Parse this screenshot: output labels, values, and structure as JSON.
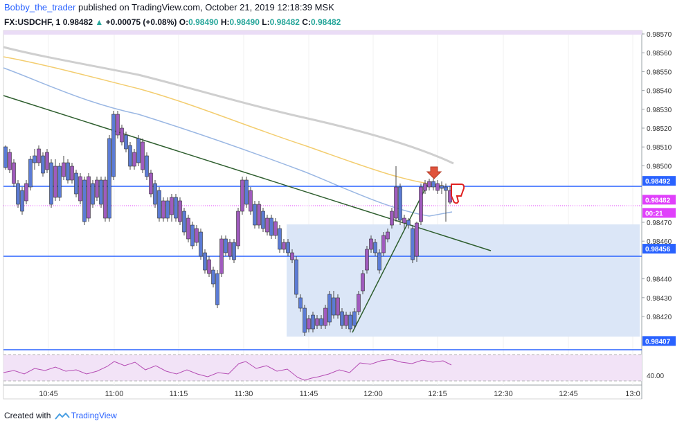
{
  "header": {
    "author": "Bobby_the_trader",
    "published": "published on TradingView.com, October 21, 2019 12:18:39 MSK",
    "symbol": "FX:USDCHF, 1",
    "last": "0.98482",
    "change_arrow": "▲",
    "change": "+0.00075 (+0.08%)",
    "o_label": "O:",
    "o_val": "0.98490",
    "h_label": "H:",
    "h_val": "0.98490",
    "l_label": "L:",
    "l_val": "0.98482",
    "c_label": "C:",
    "c_val": "0.98482"
  },
  "price_axis": {
    "ticks": [
      "0.98570",
      "0.98560",
      "0.98550",
      "0.98540",
      "0.98530",
      "0.98520",
      "0.98510",
      "0.98500",
      "0.98470",
      "0.98460",
      "0.98440",
      "0.98430",
      "0.98420"
    ],
    "tags": [
      {
        "label": "0.98492",
        "value": 0.98492,
        "color": "#2962ff"
      },
      {
        "label": "0.98482",
        "value": 0.98482,
        "color": "#e040fb"
      },
      {
        "label": "00:21",
        "value": 0.98475,
        "color": "#e040fb"
      },
      {
        "label": "0.98456",
        "value": 0.98456,
        "color": "#2962ff"
      },
      {
        "label": "0.98407",
        "value": 0.98407,
        "color": "#2962ff"
      }
    ],
    "ylim": [
      0.98402,
      0.98574
    ]
  },
  "time_axis": {
    "labels": [
      "10:45",
      "11:00",
      "11:15",
      "11:30",
      "11:45",
      "12:00",
      "12:15",
      "12:30",
      "12:45",
      "13:0"
    ]
  },
  "rsi": {
    "label": "40.00"
  },
  "colors": {
    "bull": "#5b7bd5",
    "bear": "#a05bbe",
    "level": "#2962ff",
    "trend": "#2e5e2e",
    "ma_gray": "#cfcfcf",
    "ma_yellow": "#f3cd6f",
    "ma_blue": "#9ab7e3",
    "zone": "#dbe6f7",
    "rsi_band": "#f2e3f7",
    "rsi_line": "#b44bb3"
  },
  "icons": {
    "arrow_down": "arrow-down-icon",
    "thumb_down": "thumbs-down-icon",
    "logo": "tradingview-logo"
  },
  "footer": {
    "created_with": "Created with",
    "brand": "TradingView"
  }
}
